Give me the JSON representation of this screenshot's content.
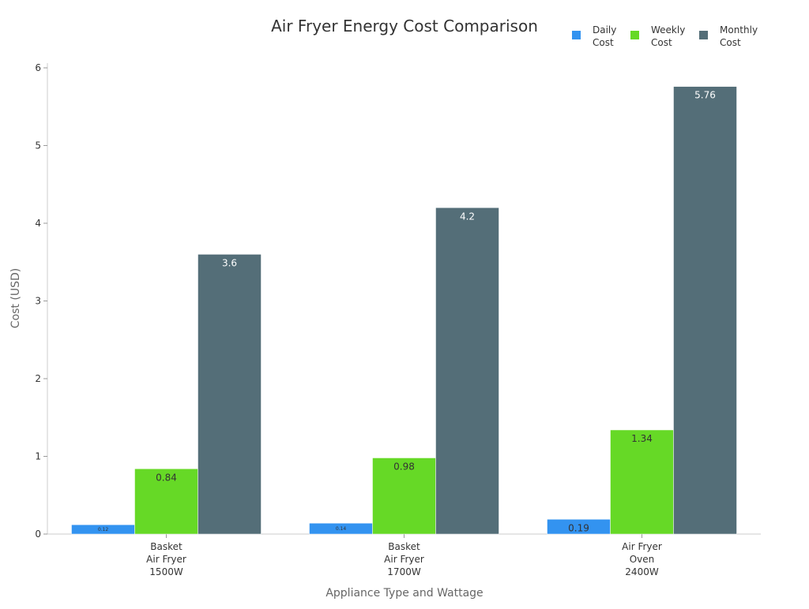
{
  "chart_data": {
    "type": "bar",
    "title": "Air Fryer Energy Cost Comparison",
    "xlabel": "Appliance Type and Wattage",
    "ylabel": "Cost (USD)",
    "ylim": [
      0,
      6
    ],
    "yticks": [
      0,
      1,
      2,
      3,
      4,
      5,
      6
    ],
    "grid": false,
    "legend_placement": "top-right",
    "categories": [
      [
        "Basket",
        "Air Fryer",
        "1500W"
      ],
      [
        "Basket",
        "Air Fryer",
        "1700W"
      ],
      [
        "Air Fryer",
        "Oven",
        "2400W"
      ]
    ],
    "series": [
      {
        "name": [
          "Daily",
          "Cost"
        ],
        "color": "#3393f0",
        "label_color": "#333333",
        "values": [
          0.12,
          0.14,
          0.19
        ]
      },
      {
        "name": [
          "Weekly",
          "Cost"
        ],
        "color": "#66d926",
        "label_color": "#333333",
        "values": [
          0.84,
          0.98,
          1.34
        ]
      },
      {
        "name": [
          "Monthly",
          "Cost"
        ],
        "color": "#546e78",
        "label_color": "#ffffff",
        "values": [
          3.6,
          4.2,
          5.76
        ]
      }
    ]
  }
}
